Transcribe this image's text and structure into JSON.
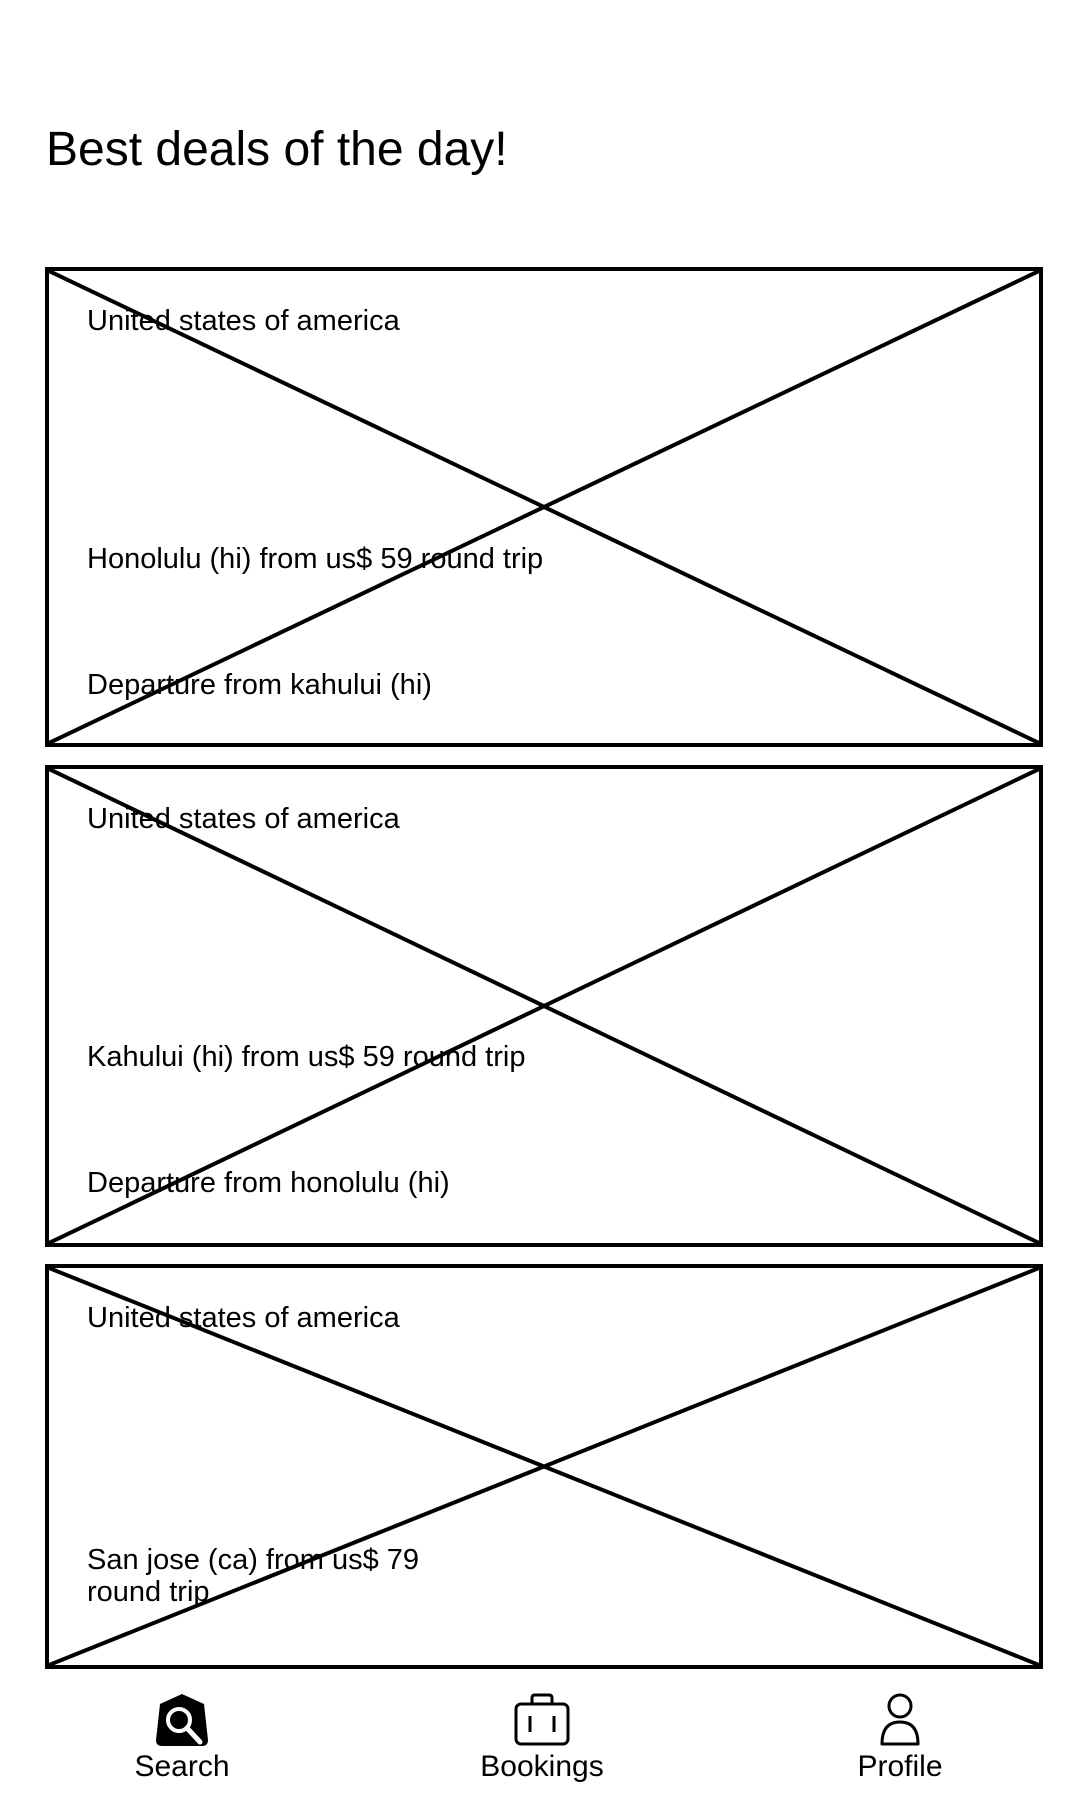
{
  "header": {
    "title": "Best deals of the day!"
  },
  "deals": [
    {
      "country": "United states of america",
      "route": "Honolulu (hi) from us$ 59 round trip",
      "departure": "Departure from kahului (hi)"
    },
    {
      "country": "United states of america",
      "route": "Kahului (hi) from us$ 59 round trip",
      "departure": "Departure from honolulu (hi)"
    },
    {
      "country": "United states of america",
      "route": "San jose (ca) from us$ 79 round trip",
      "departure": ""
    }
  ],
  "bottom_nav": {
    "items": [
      {
        "label": "Search",
        "icon": "search-icon",
        "active": true
      },
      {
        "label": "Bookings",
        "icon": "suitcase-icon",
        "active": false
      },
      {
        "label": "Profile",
        "icon": "person-icon",
        "active": false
      }
    ]
  },
  "colors": {
    "foreground": "#000000",
    "background": "#ffffff"
  }
}
